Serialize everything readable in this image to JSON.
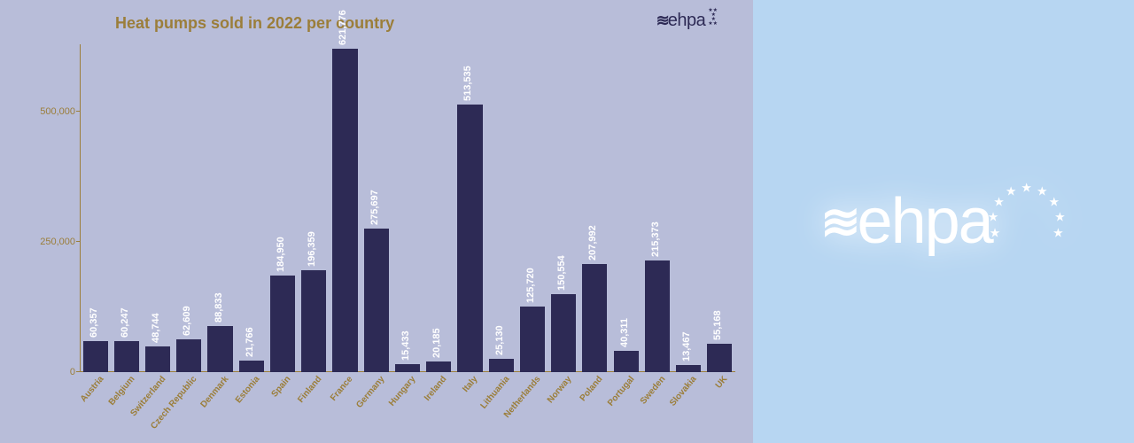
{
  "chart": {
    "type": "bar",
    "title": "Heat pumps sold in 2022 per country",
    "title_color": "#9b7e3a",
    "title_fontsize": 18,
    "background_color": "#b8bdd9",
    "bar_color": "#2d2a55",
    "value_label_color": "#ffffff",
    "axis_label_color": "#9b7e3a",
    "axis_color": "#9b7e3a",
    "label_fontsize": 10,
    "value_fontsize": 11,
    "ylim": [
      0,
      630000
    ],
    "yticks": [
      0,
      250000,
      500000
    ],
    "ytick_labels": [
      "0",
      "250,000",
      "500,000"
    ],
    "bar_width": 0.8,
    "categories": [
      "Austria",
      "Belgium",
      "Switzerland",
      "Czech Republic",
      "Denmark",
      "Estonia",
      "Spain",
      "Finland",
      "France",
      "Germany",
      "Hungary",
      "Ireland",
      "Italy",
      "Lithuania",
      "Netherlands",
      "Norway",
      "Poland",
      "Portugal",
      "Sweden",
      "Slovakia",
      "UK"
    ],
    "values": [
      60357,
      60247,
      48744,
      62609,
      88833,
      21766,
      184950,
      196359,
      621776,
      275697,
      15433,
      20185,
      513535,
      25130,
      125720,
      150554,
      207992,
      40311,
      215373,
      13467,
      55168
    ],
    "value_labels": [
      "60,357",
      "60,247",
      "48,744",
      "62,609",
      "88,833",
      "21,766",
      "184,950",
      "196,359",
      "621,776",
      "275,697",
      "15,433",
      "20,185",
      "513,535",
      "25,130",
      "125,720",
      "150,554",
      "207,992",
      "40,311",
      "215,373",
      "13,467",
      "55,168"
    ]
  },
  "small_logo": {
    "text": "ehpa",
    "color": "#2d2a55"
  },
  "big_logo": {
    "text": "ehpa",
    "color": "#ffffff",
    "panel_background": "#b7d6f2",
    "star_count": 9
  }
}
